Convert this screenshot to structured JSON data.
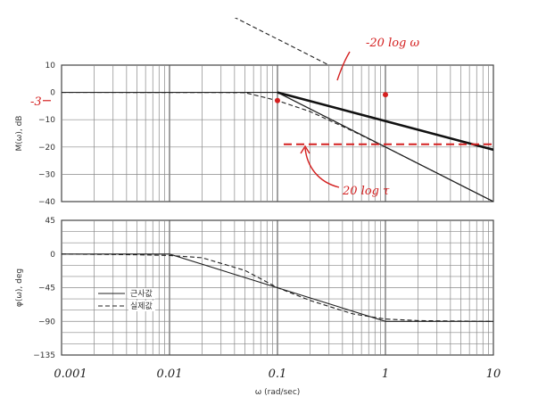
{
  "chart_data": [
    {
      "type": "line",
      "ylabel": "M(ω), dB",
      "xscale": "log",
      "xlim": [
        0.001,
        10
      ],
      "ylim": [
        -40,
        10
      ],
      "yticks": [
        "10",
        "0",
        "−10",
        "−20",
        "−30",
        "−40"
      ],
      "grid": true,
      "series": [
        {
          "name": "근사값",
          "style": "solid",
          "x": [
            0.001,
            0.1,
            10
          ],
          "y": [
            0,
            0,
            -40
          ]
        },
        {
          "name": "실제값",
          "style": "dashed",
          "x": [
            0.001,
            0.03,
            0.05,
            0.1,
            0.2,
            0.5,
            1,
            10
          ],
          "y": [
            0,
            -0.04,
            -0.1,
            -3,
            -7,
            -14.2,
            -20,
            -40
          ]
        },
        {
          "name": "",
          "style": "solid",
          "x": [
            0.1,
            10
          ],
          "y": [
            0,
            -40
          ]
        },
        {
          "name": "",
          "style": "bold",
          "x": [
            0.1,
            10
          ],
          "y": [
            0,
            -21
          ]
        },
        {
          "name": "",
          "style": "dashed",
          "x": [
            0.03,
            0.3
          ],
          "y": [
            30,
            10
          ]
        }
      ],
      "annotations": [
        {
          "text": "-20 log ω",
          "color": "#d42020"
        },
        {
          "text": "20 log τ",
          "color": "#d42020",
          "y": -19
        },
        {
          "text": "-3",
          "color": "#d42020",
          "y": -3
        }
      ]
    },
    {
      "type": "line",
      "ylabel": "φ(ω), deg",
      "xlabel": "ω (rad/sec)",
      "xscale": "log",
      "xlim": [
        0.001,
        10
      ],
      "ylim": [
        -135,
        45
      ],
      "yticks": [
        "45",
        "0",
        "−45",
        "−90",
        "−135"
      ],
      "xticks": [
        "0.001",
        "0.01",
        "0.1",
        "1",
        "10"
      ],
      "grid": true,
      "legend": "bottom-left",
      "series": [
        {
          "name": "근사값",
          "style": "solid",
          "x": [
            0.001,
            0.01,
            1,
            10
          ],
          "y": [
            0,
            0,
            -90,
            -90
          ]
        },
        {
          "name": "실제값",
          "style": "dashed",
          "x": [
            0.001,
            0.005,
            0.01,
            0.02,
            0.05,
            0.1,
            0.2,
            0.5,
            1,
            2,
            10
          ],
          "y": [
            0,
            -1,
            -2,
            -5,
            -22,
            -45,
            -62,
            -80,
            -87,
            -89,
            -90
          ]
        }
      ]
    }
  ]
}
